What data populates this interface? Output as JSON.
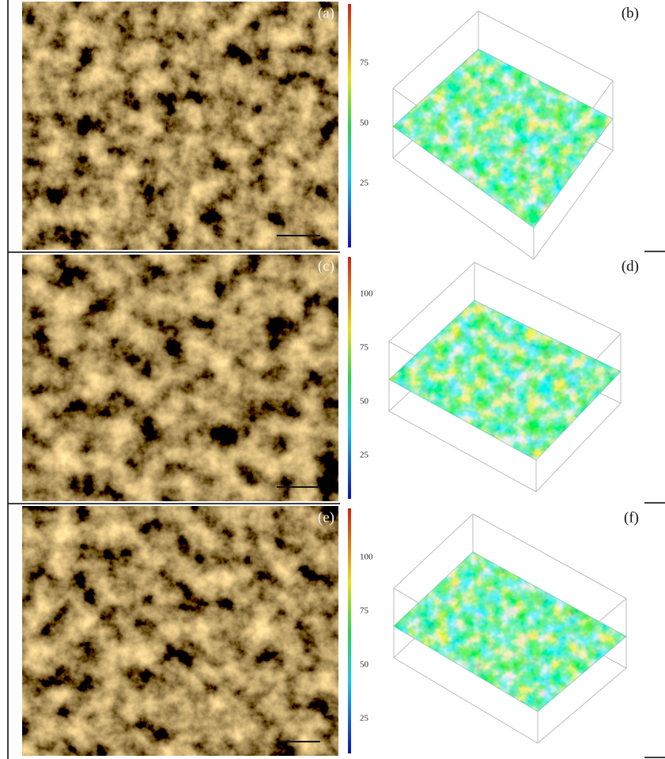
{
  "rows": [
    {
      "micrograph_label": "(a)",
      "surface_label": "(b)",
      "colorbar_ticks": [
        75,
        50,
        25
      ]
    },
    {
      "micrograph_label": "(c)",
      "surface_label": "(d)",
      "colorbar_ticks": [
        100,
        75,
        50,
        25
      ]
    },
    {
      "micrograph_label": "(e)",
      "surface_label": "(f)",
      "colorbar_ticks": [
        100,
        75,
        50,
        25
      ]
    }
  ]
}
